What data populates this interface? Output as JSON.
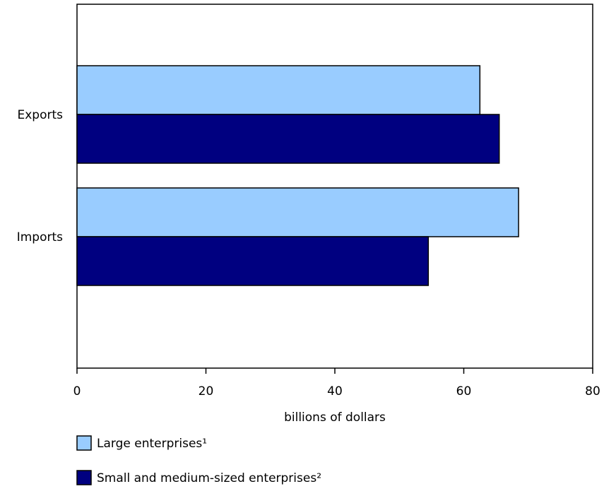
{
  "chart_data": {
    "type": "bar",
    "orientation": "horizontal",
    "categories": [
      "Exports",
      "Imports"
    ],
    "series": [
      {
        "name": "Large enterprises¹",
        "values": [
          62.5,
          68.5
        ],
        "color": "#99ccff"
      },
      {
        "name": "Small and medium-sized enterprises²",
        "values": [
          65.5,
          54.5
        ],
        "color": "#000080"
      }
    ],
    "xlabel": "billions of dollars",
    "xlim": [
      0,
      80
    ],
    "xticks": [
      0,
      20,
      40,
      60,
      80
    ],
    "grid": false,
    "legend_placement": "bottom-left"
  }
}
